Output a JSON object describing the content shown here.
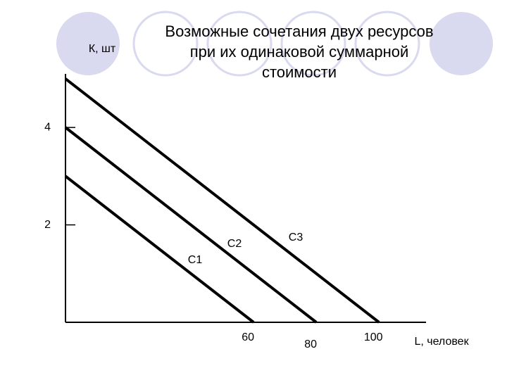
{
  "chart_data": {
    "type": "line",
    "title": [
      "Возможные сочетания двух ресурсов",
      "при их одинаковой суммарной",
      "стоимости"
    ],
    "y_label": "К, шт",
    "x_label": "L, человек",
    "series": [
      {
        "name": "C1",
        "color": "#000000",
        "x": [
          0,
          60
        ],
        "values": [
          3,
          0
        ]
      },
      {
        "name": "C2",
        "color": "#000000",
        "x": [
          0,
          80
        ],
        "values": [
          4,
          0
        ]
      },
      {
        "name": "C3",
        "color": "#000000",
        "x": [
          0,
          100
        ],
        "values": [
          5,
          0
        ]
      }
    ],
    "xlim": [
      0,
      115
    ],
    "ylim": [
      0,
      5.1
    ],
    "xticks": [
      60,
      80,
      100
    ],
    "yticks": [
      2,
      4
    ]
  }
}
